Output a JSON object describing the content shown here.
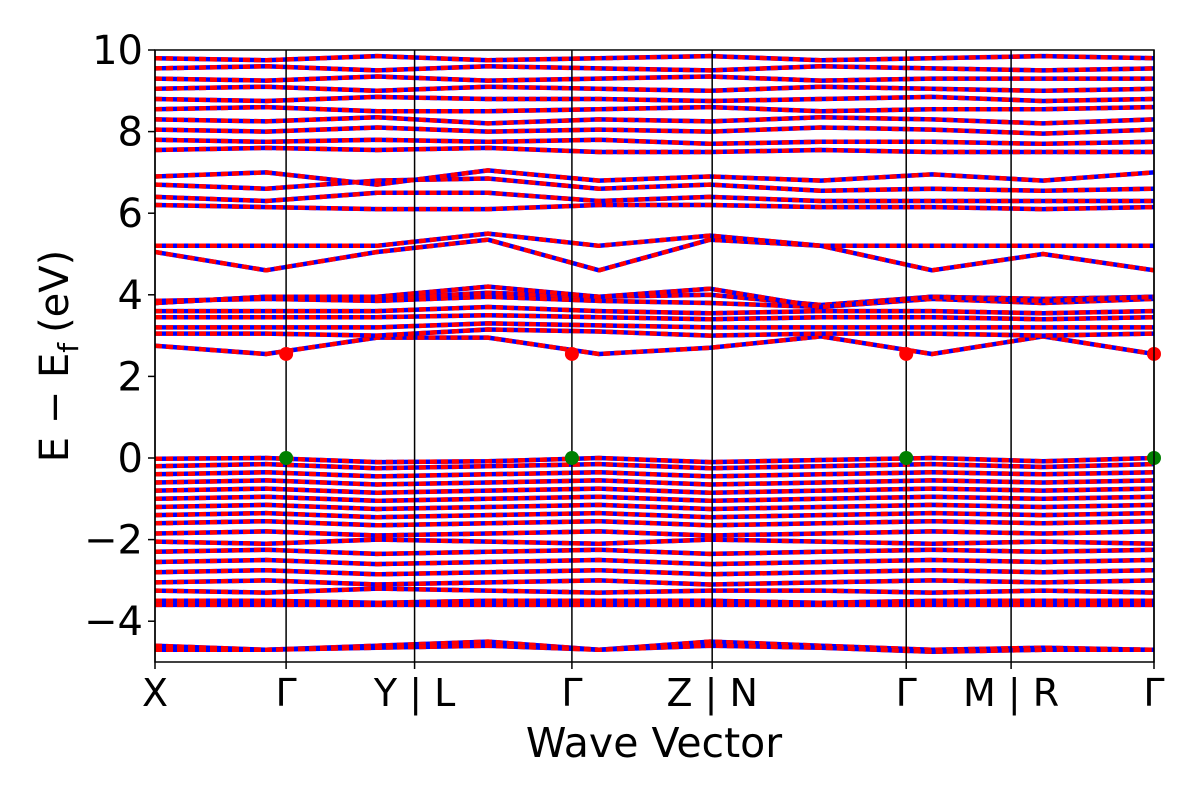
{
  "chart_data": {
    "type": "line",
    "title": "",
    "xlabel": "Wave Vector",
    "ylabel": "E − E",
    "ylabel_subscript": "f",
    "ylabel_unit": "(eV)",
    "ylim": [
      -5,
      10
    ],
    "yticks": [
      -4,
      -2,
      0,
      2,
      4,
      6,
      8,
      10
    ],
    "ytick_labels": [
      "−4",
      "−2",
      "0",
      "2",
      "4",
      "6",
      "8",
      "10"
    ],
    "xlim": [
      0,
      7.62
    ],
    "kpoints": [
      {
        "x": 0.0,
        "label": "X"
      },
      {
        "x": 1.0,
        "label": "Γ"
      },
      {
        "x": 1.98,
        "label": "Y | L"
      },
      {
        "x": 3.18,
        "label": "Γ"
      },
      {
        "x": 4.25,
        "label": "Z | N"
      },
      {
        "x": 5.73,
        "label": "Γ"
      },
      {
        "x": 6.53,
        "label": "M | R"
      },
      {
        "x": 7.62,
        "label": "Γ"
      }
    ],
    "colors": {
      "spin_a": "#ff0000",
      "spin_b": "#0000ff",
      "cbm": "#ff0000",
      "vbm": "#008000",
      "kline": "#000000"
    },
    "series": [
      {
        "values": [
          2.75,
          2.55,
          2.95,
          2.95,
          2.55,
          2.7,
          2.98,
          2.55,
          2.98,
          2.55
        ]
      },
      {
        "values": [
          3.05,
          3.05,
          3.0,
          3.15,
          3.1,
          3.0,
          3.05,
          3.05,
          3.0,
          3.05
        ]
      },
      {
        "values": [
          3.2,
          3.2,
          3.2,
          3.3,
          3.25,
          3.2,
          3.2,
          3.2,
          3.2,
          3.2
        ]
      },
      {
        "values": [
          3.45,
          3.45,
          3.45,
          3.5,
          3.45,
          3.4,
          3.45,
          3.45,
          3.4,
          3.45
        ]
      },
      {
        "values": [
          3.6,
          3.6,
          3.6,
          3.7,
          3.6,
          3.55,
          3.6,
          3.6,
          3.55,
          3.6
        ]
      },
      {
        "values": [
          3.85,
          3.9,
          3.85,
          3.95,
          3.85,
          3.8,
          3.7,
          3.9,
          3.8,
          3.9
        ]
      },
      {
        "values": [
          3.8,
          3.95,
          3.9,
          4.05,
          3.95,
          4.0,
          3.75,
          3.95,
          3.9,
          3.95
        ]
      },
      {
        "values": [
          3.8,
          3.95,
          3.95,
          4.2,
          3.95,
          4.15,
          3.7,
          3.95,
          3.85,
          3.95
        ]
      },
      {
        "values": [
          5.05,
          4.6,
          5.05,
          5.35,
          4.6,
          5.35,
          5.2,
          4.6,
          5.0,
          4.6
        ]
      },
      {
        "values": [
          5.2,
          5.2,
          5.2,
          5.5,
          5.2,
          5.45,
          5.2,
          5.2,
          5.2,
          5.2
        ]
      },
      {
        "values": [
          6.2,
          6.15,
          6.1,
          6.1,
          6.2,
          6.2,
          6.15,
          6.15,
          6.1,
          6.15
        ]
      },
      {
        "values": [
          6.4,
          6.3,
          6.5,
          6.5,
          6.3,
          6.4,
          6.3,
          6.3,
          6.3,
          6.3
        ]
      },
      {
        "values": [
          6.7,
          6.6,
          6.8,
          6.85,
          6.6,
          6.7,
          6.55,
          6.6,
          6.55,
          6.6
        ]
      },
      {
        "values": [
          6.9,
          7.0,
          6.7,
          7.05,
          6.8,
          6.9,
          6.8,
          6.95,
          6.8,
          7.0
        ]
      },
      {
        "values": [
          7.55,
          7.6,
          7.55,
          7.6,
          7.5,
          7.5,
          7.55,
          7.5,
          7.5,
          7.5
        ]
      },
      {
        "values": [
          7.8,
          7.75,
          7.8,
          7.75,
          7.8,
          7.7,
          7.75,
          7.75,
          7.7,
          7.75
        ]
      },
      {
        "values": [
          8.05,
          8.0,
          8.1,
          8.0,
          8.05,
          8.0,
          8.1,
          8.05,
          7.95,
          8.05
        ]
      },
      {
        "values": [
          8.3,
          8.25,
          8.35,
          8.2,
          8.3,
          8.25,
          8.35,
          8.3,
          8.2,
          8.3
        ]
      },
      {
        "values": [
          8.55,
          8.6,
          8.5,
          8.5,
          8.55,
          8.6,
          8.5,
          8.55,
          8.55,
          8.6
        ]
      },
      {
        "values": [
          8.8,
          8.75,
          8.85,
          8.8,
          8.8,
          8.75,
          8.8,
          8.85,
          8.75,
          8.8
        ]
      },
      {
        "values": [
          9.05,
          9.1,
          9.0,
          9.1,
          9.05,
          9.0,
          9.1,
          9.05,
          9.0,
          9.05
        ]
      },
      {
        "values": [
          9.3,
          9.25,
          9.35,
          9.25,
          9.3,
          9.35,
          9.25,
          9.3,
          9.3,
          9.3
        ]
      },
      {
        "values": [
          9.55,
          9.6,
          9.5,
          9.6,
          9.55,
          9.5,
          9.6,
          9.55,
          9.5,
          9.55
        ]
      },
      {
        "values": [
          9.8,
          9.75,
          9.85,
          9.75,
          9.8,
          9.85,
          9.75,
          9.8,
          9.85,
          9.8
        ]
      },
      {
        "values": [
          -0.02,
          0.0,
          -0.1,
          -0.08,
          0.0,
          -0.1,
          -0.05,
          0.0,
          -0.08,
          0.0
        ]
      },
      {
        "values": [
          -0.2,
          -0.15,
          -0.25,
          -0.2,
          -0.15,
          -0.25,
          -0.2,
          -0.15,
          -0.22,
          -0.15
        ]
      },
      {
        "values": [
          -0.4,
          -0.35,
          -0.45,
          -0.4,
          -0.35,
          -0.45,
          -0.4,
          -0.35,
          -0.4,
          -0.35
        ]
      },
      {
        "values": [
          -0.6,
          -0.55,
          -0.65,
          -0.6,
          -0.55,
          -0.65,
          -0.6,
          -0.55,
          -0.6,
          -0.55
        ]
      },
      {
        "values": [
          -0.8,
          -0.75,
          -0.85,
          -0.8,
          -0.75,
          -0.85,
          -0.8,
          -0.75,
          -0.8,
          -0.75
        ]
      },
      {
        "values": [
          -1.0,
          -0.95,
          -1.05,
          -1.0,
          -0.95,
          -1.05,
          -1.0,
          -0.95,
          -1.0,
          -0.95
        ]
      },
      {
        "values": [
          -1.2,
          -1.15,
          -1.25,
          -1.2,
          -1.15,
          -1.25,
          -1.2,
          -1.15,
          -1.2,
          -1.15
        ]
      },
      {
        "values": [
          -1.4,
          -1.35,
          -1.45,
          -1.4,
          -1.35,
          -1.45,
          -1.4,
          -1.35,
          -1.4,
          -1.35
        ]
      },
      {
        "values": [
          -1.6,
          -1.55,
          -1.65,
          -1.6,
          -1.55,
          -1.65,
          -1.6,
          -1.55,
          -1.6,
          -1.55
        ]
      },
      {
        "values": [
          -1.85,
          -1.8,
          -1.9,
          -1.85,
          -1.8,
          -1.9,
          -1.85,
          -1.8,
          -1.85,
          -1.8
        ]
      },
      {
        "values": [
          -2.05,
          -2.1,
          -2.0,
          -2.05,
          -2.1,
          -2.0,
          -2.05,
          -2.1,
          -2.05,
          -2.1
        ]
      },
      {
        "values": [
          -2.3,
          -2.25,
          -2.35,
          -2.3,
          -2.25,
          -2.35,
          -2.3,
          -2.25,
          -2.3,
          -2.25
        ]
      },
      {
        "values": [
          -2.55,
          -2.5,
          -2.6,
          -2.55,
          -2.5,
          -2.6,
          -2.55,
          -2.5,
          -2.55,
          -2.5
        ]
      },
      {
        "values": [
          -2.8,
          -2.75,
          -2.85,
          -2.8,
          -2.75,
          -2.85,
          -2.8,
          -2.75,
          -2.8,
          -2.75
        ]
      },
      {
        "values": [
          -3.05,
          -3.0,
          -3.1,
          -3.05,
          -3.0,
          -3.1,
          -3.05,
          -3.0,
          -3.05,
          -3.0
        ]
      },
      {
        "values": [
          -3.25,
          -3.3,
          -3.2,
          -3.25,
          -3.3,
          -3.25,
          -3.25,
          -3.3,
          -3.25,
          -3.3
        ]
      },
      {
        "values": [
          -3.5,
          -3.5,
          -3.55,
          -3.5,
          -3.5,
          -3.5,
          -3.55,
          -3.5,
          -3.5,
          -3.5
        ]
      },
      {
        "values": [
          -3.6,
          -3.6,
          -3.6,
          -3.6,
          -3.6,
          -3.6,
          -3.6,
          -3.6,
          -3.6,
          -3.6
        ]
      },
      {
        "values": [
          -4.6,
          -4.7,
          -4.6,
          -4.5,
          -4.7,
          -4.5,
          -4.6,
          -4.7,
          -4.65,
          -4.7
        ]
      },
      {
        "values": [
          -4.7,
          -4.7,
          -4.65,
          -4.6,
          -4.7,
          -4.6,
          -4.65,
          -4.75,
          -4.7,
          -4.7
        ]
      }
    ],
    "markers": [
      {
        "x": 1.0,
        "y": 2.55,
        "kind": "cbm"
      },
      {
        "x": 3.18,
        "y": 2.55,
        "kind": "cbm"
      },
      {
        "x": 5.73,
        "y": 2.55,
        "kind": "cbm"
      },
      {
        "x": 7.62,
        "y": 2.55,
        "kind": "cbm"
      },
      {
        "x": 1.0,
        "y": 0.0,
        "kind": "vbm"
      },
      {
        "x": 3.18,
        "y": 0.0,
        "kind": "vbm"
      },
      {
        "x": 5.73,
        "y": 0.0,
        "kind": "vbm"
      },
      {
        "x": 7.62,
        "y": 0.0,
        "kind": "vbm"
      }
    ]
  }
}
